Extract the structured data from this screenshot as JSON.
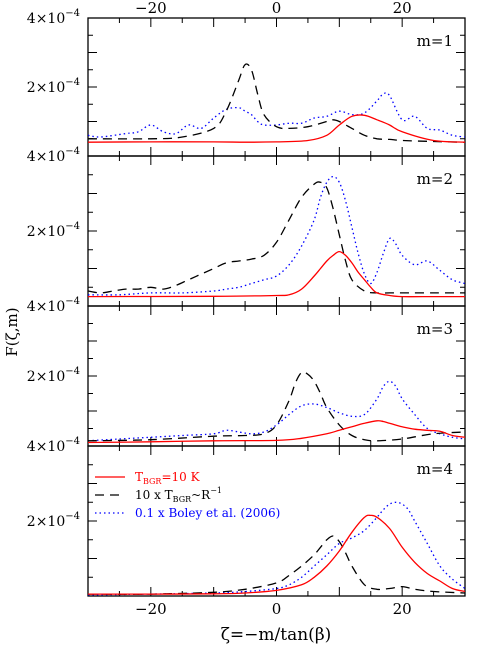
{
  "chart_data": {
    "type": "line",
    "xlabel": "ζ=−m/tan(β)",
    "ylabel": "F(ζ,m)",
    "xlim": [
      -30,
      30
    ],
    "ylim": [
      0,
      0.0004
    ],
    "x_ticks": [
      -20,
      0,
      20
    ],
    "x_tick_labels": [
      "−20",
      "0",
      "20"
    ],
    "y_ticks_labeled": [
      0.0002,
      0.0004
    ],
    "y_tick_labels": {
      "top": "4×10",
      "mid": "2×10",
      "exp": "−4"
    },
    "legend": {
      "placement": "top-left of bottom panel",
      "entries": [
        {
          "series": "s1",
          "base": "T",
          "sub": "BGR",
          "tail": "=10 K",
          "color": "#ff0000"
        },
        {
          "series": "s2",
          "base": "10 x T",
          "sub": "BGR",
          "tail": "~R",
          "sup": "−1",
          "color": "#000000"
        },
        {
          "series": "s3",
          "base": "0.1 x Boley et al. (2006)",
          "color": "#0000ff"
        }
      ]
    },
    "series_styles": {
      "s1": {
        "color": "#ff0000",
        "dash": ""
      },
      "s2": {
        "color": "#000000",
        "dash": "9,6"
      },
      "s3": {
        "color": "#0000ff",
        "dash": "1.5,3"
      }
    },
    "panels": [
      {
        "label": "m=1",
        "series": {
          "s1": {
            "x": [
              -30,
              -20,
              -10,
              -5,
              0,
              5,
              8,
              10,
              12,
              14,
              16,
              18,
              20,
              25,
              30
            ],
            "y": [
              4e-05,
              4.1e-05,
              4.1e-05,
              4e-05,
              4.1e-05,
              4.5e-05,
              6e-05,
              9e-05,
              0.000115,
              0.000118,
              0.000105,
              9e-05,
              7e-05,
              4.5e-05,
              4e-05
            ]
          },
          "s2": {
            "x": [
              -30,
              -20,
              -15,
              -10,
              -8,
              -6,
              -5,
              -4,
              -3,
              -2,
              0,
              2,
              5,
              8,
              9,
              10,
              12,
              14,
              16,
              18,
              20,
              25,
              30
            ],
            "y": [
              5e-05,
              5e-05,
              5.5e-05,
              8e-05,
              0.00013,
              0.00022,
              0.000265,
              0.00025,
              0.00018,
              0.00012,
              8.5e-05,
              8e-05,
              8.5e-05,
              0.0001,
              0.000105,
              0.0001,
              8e-05,
              6e-05,
              5e-05,
              4.8e-05,
              4.5e-05,
              4.2e-05,
              4e-05
            ]
          },
          "s3": {
            "x": [
              -30,
              -28,
              -24,
              -22,
              -20,
              -18,
              -16,
              -14,
              -12,
              -10,
              -8,
              -6,
              -5,
              -4,
              -3,
              -2,
              0,
              2,
              4,
              6,
              8,
              10,
              12,
              14,
              16,
              17,
              18,
              20,
              22,
              24,
              26,
              28,
              30
            ],
            "y": [
              6e-05,
              5.5e-05,
              6.5e-05,
              7e-05,
              9e-05,
              7e-05,
              6.5e-05,
              9e-05,
              8e-05,
              0.00011,
              0.000135,
              0.00014,
              0.00013,
              0.00012,
              0.0001,
              9e-05,
              9e-05,
              9.5e-05,
              9.5e-05,
              0.00011,
              0.000115,
              0.00013,
              0.00012,
              0.000125,
              0.00016,
              0.00018,
              0.000175,
              0.000105,
              0.000115,
              8e-05,
              7.5e-05,
              6e-05,
              5.5e-05
            ]
          }
        }
      },
      {
        "label": "m=2",
        "series": {
          "s1": {
            "x": [
              -30,
              -10,
              0,
              2,
              4,
              6,
              7,
              8,
              9,
              10,
              11,
              12,
              13,
              14,
              15,
              16,
              18,
              20,
              25,
              30
            ],
            "y": [
              2.5e-05,
              2.6e-05,
              2.8e-05,
              3e-05,
              4.5e-05,
              8e-05,
              0.0001,
              0.00012,
              0.000135,
              0.000145,
              0.000135,
              0.000115,
              9e-05,
              7e-05,
              5e-05,
              3.5e-05,
              2.8e-05,
              2.5e-05,
              2.5e-05,
              2.5e-05
            ]
          },
          "s2": {
            "x": [
              -30,
              -28,
              -26,
              -24,
              -22,
              -20,
              -18,
              -16,
              -14,
              -12,
              -10,
              -8,
              -6,
              -4,
              -2,
              0,
              2,
              4,
              6,
              7,
              8,
              9,
              10,
              11,
              12,
              14,
              16,
              18,
              20,
              25,
              30
            ],
            "y": [
              4e-05,
              3.5e-05,
              4e-05,
              4.5e-05,
              4.5e-05,
              5e-05,
              4.5e-05,
              5.5e-05,
              7e-05,
              8.5e-05,
              0.0001,
              0.000115,
              0.00012,
              0.000125,
              0.000135,
              0.00017,
              0.00023,
              0.00029,
              0.000325,
              0.00033,
              0.000315,
              0.00026,
              0.00019,
              0.00012,
              7e-05,
              4e-05,
              3.5e-05,
              3.5e-05,
              3.5e-05,
              3.5e-05,
              3.5e-05
            ]
          },
          "s3": {
            "x": [
              -30,
              -25,
              -20,
              -15,
              -10,
              -8,
              -6,
              -4,
              -2,
              0,
              2,
              4,
              6,
              7,
              8,
              9,
              10,
              11,
              12,
              13,
              14,
              15,
              16,
              17,
              18,
              19,
              20,
              22,
              24,
              26,
              28,
              30
            ],
            "y": [
              3e-05,
              3e-05,
              3.5e-05,
              3.5e-05,
              4e-05,
              4.5e-05,
              5e-05,
              6e-05,
              7e-05,
              8e-05,
              0.00011,
              0.00016,
              0.00023,
              0.00029,
              0.00033,
              0.000345,
              0.00033,
              0.00028,
              0.00021,
              0.00014,
              8.5e-05,
              6e-05,
              9e-05,
              0.00014,
              0.00018,
              0.000165,
              0.000135,
              0.00011,
              0.00012,
              9.5e-05,
              7e-05,
              6e-05
            ]
          }
        }
      },
      {
        "label": "m=3",
        "series": {
          "s1": {
            "x": [
              -30,
              -20,
              -10,
              0,
              4,
              8,
              10,
              12,
              14,
              16,
              17,
              18,
              20,
              22,
              24,
              26,
              28,
              30
            ],
            "y": [
              1e-05,
              1.2e-05,
              1.5e-05,
              1.6e-05,
              2.2e-05,
              3.5e-05,
              4.5e-05,
              5.5e-05,
              6.5e-05,
              7.2e-05,
              7e-05,
              6.5e-05,
              5.5e-05,
              4.8e-05,
              4.5e-05,
              4.2e-05,
              3e-05,
              2.5e-05
            ]
          },
          "s2": {
            "x": [
              -30,
              -20,
              -10,
              -5,
              -2,
              0,
              2,
              3,
              4,
              5,
              6,
              7,
              8,
              10,
              12,
              14,
              16,
              20,
              25,
              30
            ],
            "y": [
              1.5e-05,
              1.8e-05,
              2.8e-05,
              3e-05,
              3.5e-05,
              6e-05,
              0.00013,
              0.00018,
              0.00021,
              0.000205,
              0.000185,
              0.00015,
              0.00011,
              6e-05,
              3e-05,
              1.8e-05,
              1.5e-05,
              2e-05,
              3.5e-05,
              4e-05
            ]
          },
          "s3": {
            "x": [
              -30,
              -25,
              -20,
              -15,
              -10,
              -8,
              -6,
              -4,
              -2,
              0,
              2,
              4,
              6,
              8,
              10,
              12,
              14,
              16,
              17,
              18,
              19,
              20,
              22,
              24,
              26,
              28,
              30
            ],
            "y": [
              1.5e-05,
              2e-05,
              2.5e-05,
              3e-05,
              3.5e-05,
              4.5e-05,
              4e-05,
              3.5e-05,
              4e-05,
              6e-05,
              9e-05,
              0.000115,
              0.00012,
              0.00011,
              9.5e-05,
              8.5e-05,
              9e-05,
              0.000135,
              0.00017,
              0.000185,
              0.00017,
              0.000135,
              9e-05,
              5e-05,
              3.5e-05,
              2.5e-05,
              2e-05
            ]
          }
        }
      },
      {
        "label": "m=4",
        "series": {
          "s1": {
            "x": [
              -30,
              -20,
              -10,
              -5,
              0,
              4,
              6,
              8,
              10,
              12,
              14,
              15,
              16,
              18,
              20,
              22,
              24,
              26,
              28,
              30
            ],
            "y": [
              5e-06,
              5e-06,
              6e-06,
              8e-06,
              1.5e-05,
              3e-05,
              5e-05,
              8e-05,
              0.00012,
              0.00017,
              0.00021,
              0.000215,
              0.00021,
              0.00018,
              0.00013,
              9e-05,
              6e-05,
              4e-05,
              2e-05,
              1.2e-05
            ]
          },
          "s2": {
            "x": [
              -30,
              -20,
              -10,
              -5,
              0,
              2,
              4,
              6,
              7,
              8,
              9,
              10,
              11,
              12,
              14,
              16,
              18,
              20,
              22,
              25,
              30
            ],
            "y": [
              5e-06,
              5e-06,
              1e-05,
              1.8e-05,
              3.5e-05,
              5.5e-05,
              8e-05,
              0.00011,
              0.00013,
              0.00015,
              0.00016,
              0.000145,
              0.000115,
              8e-05,
              3e-05,
              1.8e-05,
              2e-05,
              2.5e-05,
              1.8e-05,
              1.2e-05,
              8e-06
            ]
          },
          "s3": {
            "x": [
              -30,
              -20,
              -10,
              -5,
              0,
              2,
              4,
              6,
              8,
              10,
              12,
              14,
              16,
              17,
              18,
              19,
              20,
              21,
              22,
              24,
              26,
              28,
              30
            ],
            "y": [
              3e-06,
              5e-06,
              8e-06,
              1.2e-05,
              2e-05,
              3e-05,
              5e-05,
              8e-05,
              0.00011,
              0.00014,
              0.000155,
              0.000175,
              0.00021,
              0.00023,
              0.000245,
              0.00025,
              0.000245,
              0.00023,
              0.0002,
              0.00014,
              8e-05,
              4.5e-05,
              2e-05
            ]
          }
        }
      }
    ]
  }
}
